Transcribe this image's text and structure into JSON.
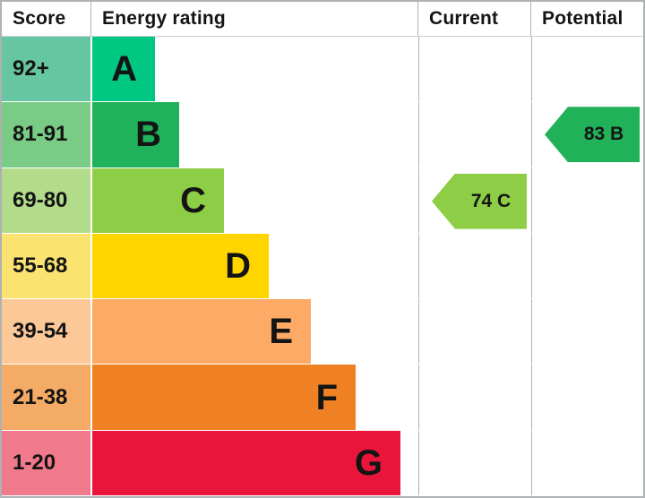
{
  "header": {
    "score": "Score",
    "energy_rating": "Energy rating",
    "current": "Current",
    "potential": "Potential"
  },
  "chart_data": {
    "type": "bar",
    "title": "Energy rating",
    "description": "EPC energy efficiency rating chart with bands A-G and current/potential markers",
    "bands": [
      {
        "rating": "A",
        "score": "92+",
        "cell_color": "#66c6a1",
        "bar_color": "#00c781"
      },
      {
        "rating": "B",
        "score": "81-91",
        "cell_color": "#79cb86",
        "bar_color": "#1fb25a"
      },
      {
        "rating": "C",
        "score": "69-80",
        "cell_color": "#b2dc8a",
        "bar_color": "#8dce46"
      },
      {
        "rating": "D",
        "score": "55-68",
        "cell_color": "#fbe372",
        "bar_color": "#ffd500"
      },
      {
        "rating": "E",
        "score": "39-54",
        "cell_color": "#fdc897",
        "bar_color": "#fcaa65"
      },
      {
        "rating": "F",
        "score": "21-38",
        "cell_color": "#f4ab66",
        "bar_color": "#ef8023"
      },
      {
        "rating": "G",
        "score": "1-20",
        "cell_color": "#f0798b",
        "bar_color": "#e9153b"
      }
    ],
    "markers": {
      "current": {
        "label": "74 C",
        "value": 74,
        "rating": "C",
        "color": "#8dce46"
      },
      "potential": {
        "label": "83 B",
        "value": 83,
        "rating": "B",
        "color": "#21b158"
      }
    }
  }
}
